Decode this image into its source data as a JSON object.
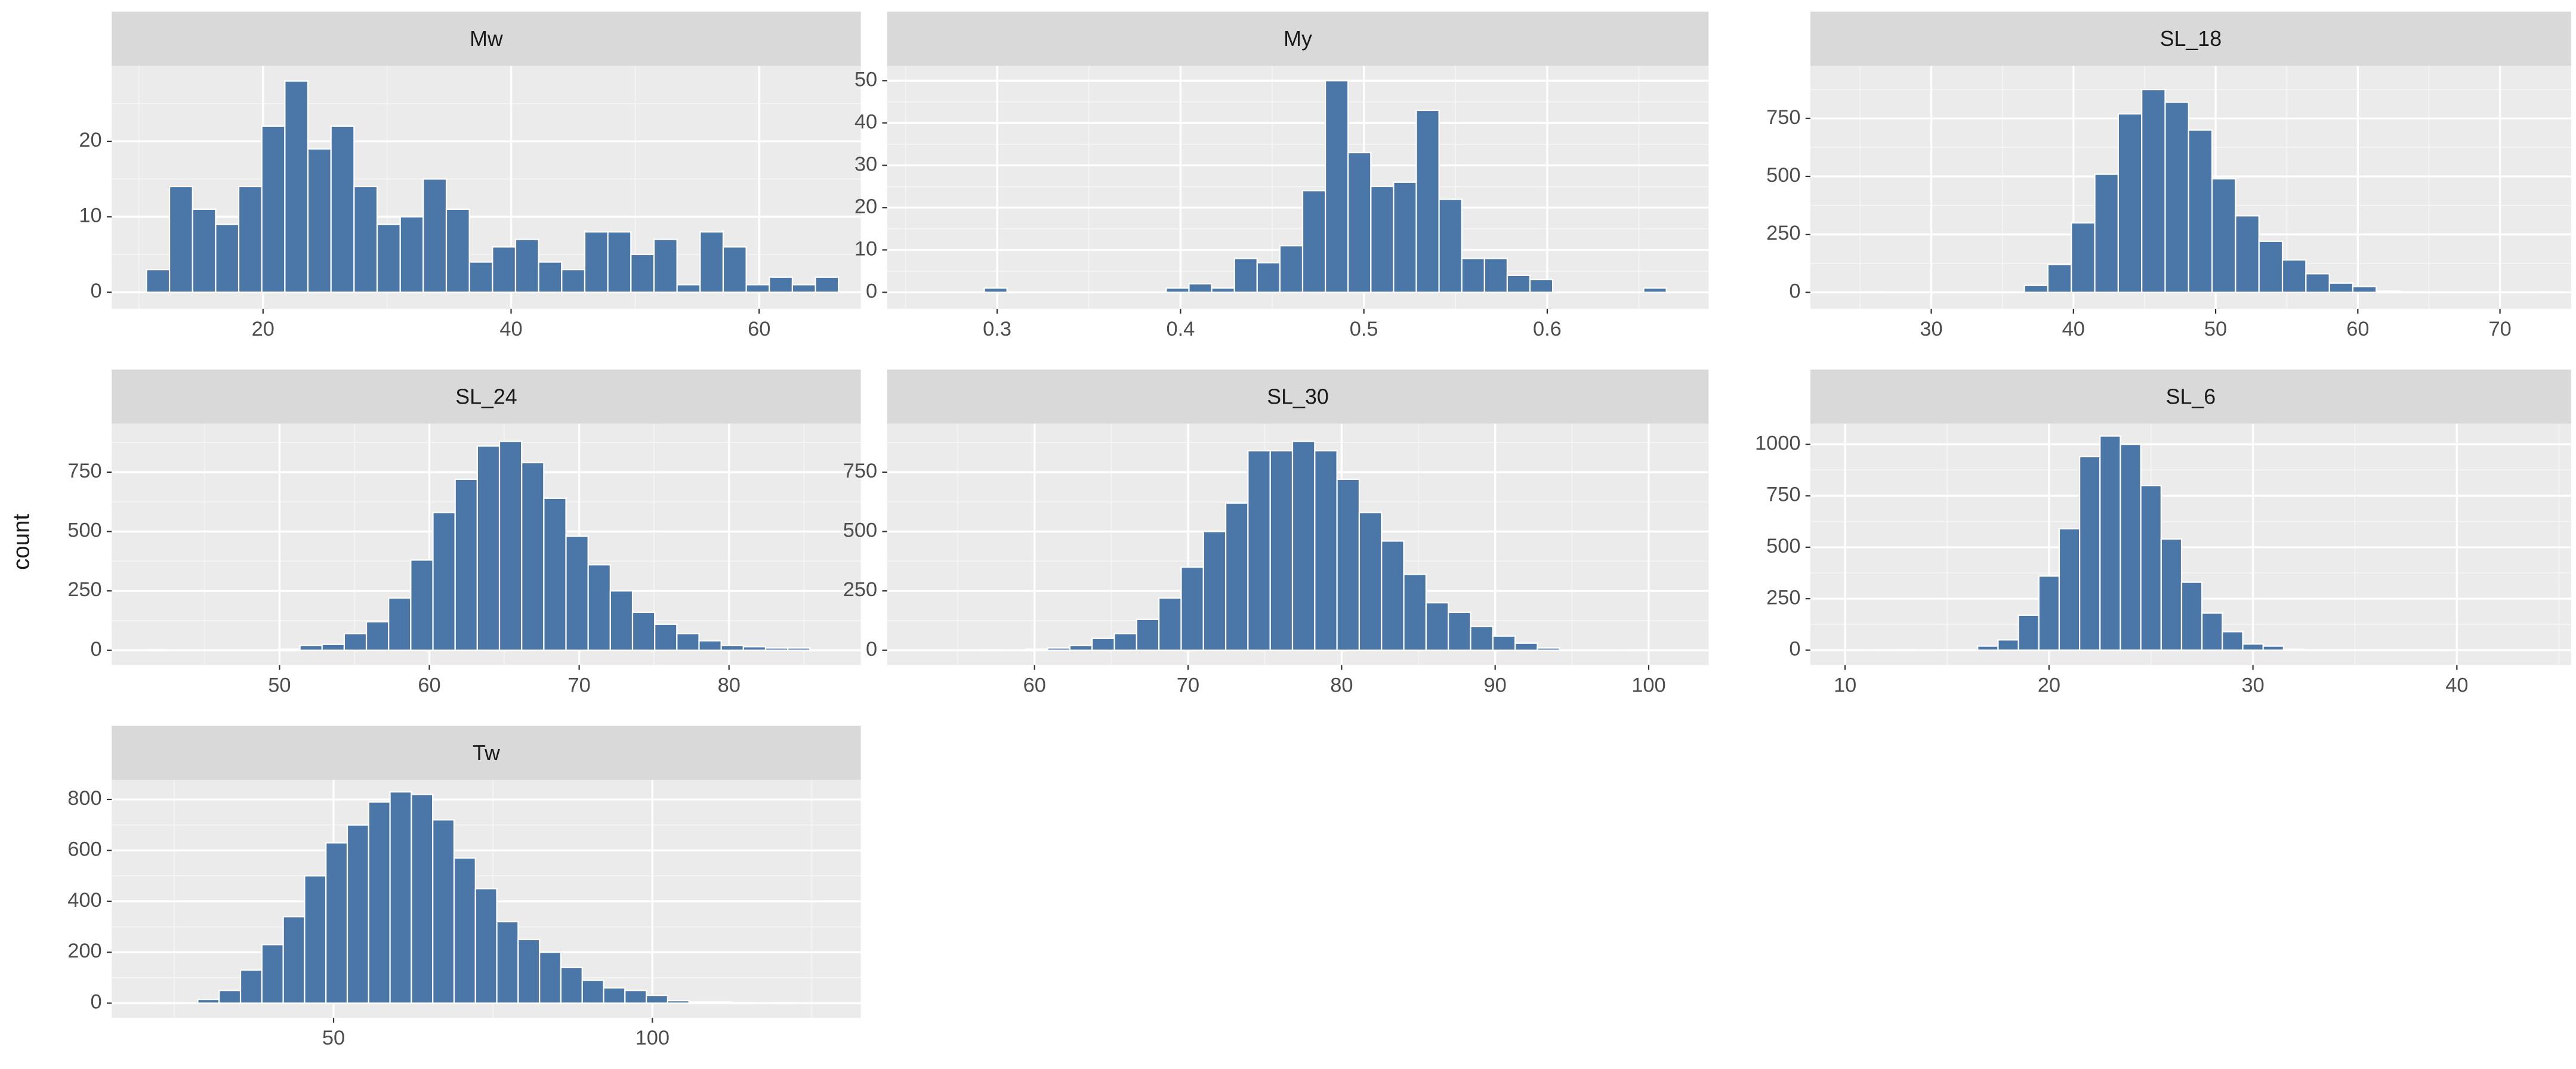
{
  "ylabel": "count",
  "chart_data": [
    {
      "type": "histogram",
      "title": "Mw",
      "color": "#4b77a8",
      "grid": true,
      "bins": [
        10.6,
        12.46,
        14.32,
        16.18,
        18.04,
        19.9,
        21.76,
        23.62,
        25.48,
        27.34,
        29.2,
        31.06,
        32.92,
        34.78,
        36.64,
        38.5,
        40.36,
        42.22,
        44.08,
        45.94,
        47.8,
        49.66,
        51.52,
        53.38,
        55.24,
        57.1,
        58.96,
        60.82,
        62.68,
        64.54,
        66.4
      ],
      "counts": [
        3,
        14,
        11,
        9,
        14,
        22,
        28,
        19,
        22,
        14,
        9,
        10,
        15,
        11,
        4,
        6,
        7,
        4,
        3,
        8,
        8,
        5,
        7,
        1,
        8,
        6,
        1,
        2,
        1,
        2
      ],
      "xlim": [
        7.8,
        68.2
      ],
      "ylim": [
        -2.2,
        30
      ],
      "xticks": [
        20,
        40,
        60
      ],
      "yticks": [
        0,
        10,
        20
      ]
    },
    {
      "type": "histogram",
      "title": "My",
      "color": "#4b77a8",
      "grid": true,
      "bins": [
        0.293,
        0.3054,
        0.3178,
        0.3302,
        0.3426,
        0.355,
        0.3674,
        0.3798,
        0.3922,
        0.4046,
        0.417,
        0.4294,
        0.4418,
        0.4542,
        0.4666,
        0.479,
        0.4914,
        0.5038,
        0.5162,
        0.5286,
        0.541,
        0.5534,
        0.5658,
        0.5782,
        0.5906,
        0.603,
        0.6154,
        0.6278,
        0.6402,
        0.6526,
        0.665
      ],
      "counts": [
        1,
        0,
        0,
        0,
        0,
        0,
        0,
        0,
        1,
        2,
        1,
        8,
        7,
        11,
        24,
        50,
        33,
        25,
        26,
        43,
        22,
        8,
        8,
        4,
        3,
        0,
        0,
        0,
        0,
        1
      ],
      "xlim": [
        0.24,
        0.688
      ],
      "ylim": [
        -3.9,
        53.5
      ],
      "xticks": [
        0.3,
        0.4,
        0.5,
        0.6
      ],
      "yticks": [
        0,
        10,
        20,
        30,
        40,
        50
      ]
    },
    {
      "type": "histogram",
      "title": "SL_18",
      "color": "#4b77a8",
      "grid": true,
      "bins": [
        25,
        26.65,
        28.3,
        29.95,
        31.6,
        33.25,
        34.9,
        36.55,
        38.2,
        39.85,
        41.5,
        43.15,
        44.8,
        46.45,
        48.1,
        49.75,
        51.4,
        53.05,
        54.7,
        56.35,
        58,
        59.65,
        61.3,
        62.95,
        64.6,
        66.25,
        67.9,
        69.55,
        71.2,
        72.85,
        74.5
      ],
      "counts": [
        2,
        0,
        0,
        0,
        0,
        0,
        0,
        30,
        120,
        300,
        510,
        770,
        875,
        820,
        700,
        490,
        330,
        220,
        140,
        80,
        40,
        25,
        5,
        2,
        0,
        0,
        0,
        0,
        0,
        2
      ],
      "xlim": [
        21.5,
        75
      ],
      "ylim": [
        -71,
        977
      ],
      "xticks": [
        30,
        40,
        50,
        60,
        70
      ],
      "yticks": [
        0,
        250,
        500,
        750
      ]
    },
    {
      "type": "histogram",
      "title": "SL_24",
      "color": "#4b77a8",
      "grid": true,
      "bins": [
        41,
        42.48,
        43.96,
        45.44,
        46.92,
        48.4,
        49.88,
        51.36,
        52.84,
        54.32,
        55.8,
        57.28,
        58.76,
        60.24,
        61.72,
        63.2,
        64.68,
        66.16,
        67.64,
        69.12,
        70.6,
        72.08,
        73.56,
        75.04,
        76.52,
        78,
        79.48,
        80.96,
        82.44,
        83.92,
        85.4
      ],
      "counts": [
        3,
        0,
        0,
        0,
        0,
        0,
        5,
        20,
        25,
        70,
        120,
        220,
        380,
        580,
        720,
        860,
        880,
        790,
        640,
        480,
        360,
        250,
        160,
        110,
        70,
        40,
        20,
        15,
        10,
        10
      ],
      "xlim": [
        38.8,
        88.8
      ],
      "ylim": [
        -62,
        954
      ],
      "xticks": [
        50,
        60,
        70,
        80
      ],
      "yticks": [
        0,
        250,
        500,
        750
      ]
    },
    {
      "type": "histogram",
      "title": "SL_30",
      "color": "#4b77a8",
      "grid": true,
      "bins": [
        56.5,
        57.95,
        59.4,
        60.85,
        62.3,
        63.75,
        65.2,
        66.65,
        68.1,
        69.55,
        71,
        72.45,
        73.9,
        75.35,
        76.8,
        78.25,
        79.7,
        81.15,
        82.6,
        84.05,
        85.5,
        86.95,
        88.4,
        89.85,
        91.3,
        92.75,
        94.2,
        95.65,
        97.1,
        98.55,
        100
      ],
      "counts": [
        2,
        0,
        5,
        10,
        20,
        50,
        70,
        130,
        220,
        350,
        500,
        620,
        840,
        840,
        880,
        840,
        720,
        580,
        460,
        320,
        200,
        160,
        100,
        60,
        30,
        10,
        0,
        0,
        0,
        2
      ],
      "xlim": [
        50.4,
        103.9
      ],
      "ylim": [
        -62,
        954
      ],
      "xticks": [
        60,
        70,
        80,
        90,
        100
      ],
      "yticks": [
        0,
        250,
        500,
        750
      ]
    },
    {
      "type": "histogram",
      "title": "SL_6",
      "color": "#4b77a8",
      "grid": true,
      "bins": [
        10.5,
        11.5,
        12.5,
        13.5,
        14.5,
        15.5,
        16.5,
        17.5,
        18.5,
        19.5,
        20.5,
        21.5,
        22.5,
        23.5,
        24.5,
        25.5,
        26.5,
        27.5,
        28.5,
        29.5,
        30.5,
        31.5,
        32.5,
        33.5,
        34.5,
        35.5,
        36.5,
        37.5,
        38.5,
        39.5,
        40.5
      ],
      "counts": [
        0,
        2,
        3,
        0,
        0,
        0,
        20,
        50,
        170,
        360,
        590,
        940,
        1040,
        1000,
        800,
        540,
        330,
        180,
        90,
        30,
        20,
        5,
        0,
        0,
        0,
        0,
        0,
        0,
        2,
        0
      ],
      "xlim": [
        8.3,
        45.6
      ],
      "ylim": [
        -72,
        1100
      ],
      "xticks": [
        10,
        20,
        30,
        40
      ],
      "yticks": [
        0,
        250,
        500,
        750,
        1000
      ]
    },
    {
      "type": "histogram",
      "title": "Tw",
      "color": "#4b77a8",
      "grid": true,
      "bins": [
        22,
        25.35,
        28.7,
        32.05,
        35.4,
        38.75,
        42.1,
        45.45,
        48.8,
        52.15,
        55.5,
        58.85,
        62.2,
        65.55,
        68.9,
        72.25,
        75.6,
        78.95,
        82.3,
        85.65,
        89,
        92.35,
        95.7,
        99.05,
        102.4,
        105.75,
        109.1,
        112.45,
        115.8,
        119.15,
        122.5
      ],
      "counts": [
        2,
        0,
        15,
        50,
        130,
        230,
        340,
        500,
        630,
        700,
        790,
        830,
        820,
        720,
        570,
        450,
        320,
        250,
        200,
        140,
        90,
        60,
        50,
        30,
        10,
        5,
        5,
        2,
        0,
        2
      ],
      "xlim": [
        15.2,
        132.7
      ],
      "ylim": [
        -58,
        877
      ],
      "xticks": [
        50,
        100
      ],
      "yticks": [
        0,
        200,
        400,
        600,
        800
      ]
    }
  ]
}
